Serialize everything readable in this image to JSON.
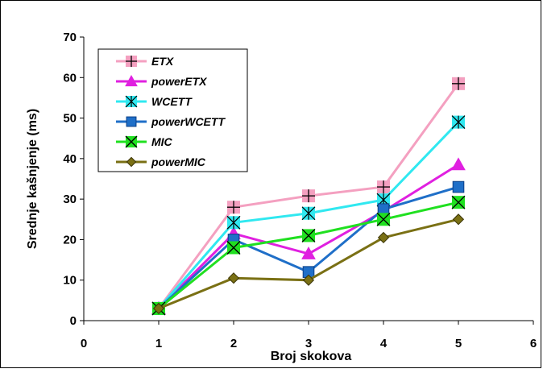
{
  "chart_data": {
    "type": "line",
    "title": "",
    "xlabel": "Broj skokova",
    "ylabel": "Srednje kašnjenje (ms)",
    "xlim": [
      0,
      6
    ],
    "ylim": [
      0,
      70
    ],
    "x_ticks": [
      "0",
      "1",
      "2",
      "3",
      "4",
      "5",
      "6"
    ],
    "y_ticks": [
      "0",
      "10",
      "20",
      "30",
      "40",
      "50",
      "60",
      "70"
    ],
    "grid": false,
    "legend_position": "top-left",
    "x": [
      1,
      2,
      3,
      4,
      5
    ],
    "series": [
      {
        "name": "ETX",
        "values": [
          3,
          28,
          30.8,
          33,
          58.5
        ],
        "color": "#f4a0c0",
        "marker": "plus"
      },
      {
        "name": "powerETX",
        "values": [
          3,
          21.5,
          16.5,
          27,
          38.5
        ],
        "color": "#e020e0",
        "marker": "triangle"
      },
      {
        "name": "WCETT",
        "values": [
          3,
          24.2,
          26.5,
          29.8,
          49
        ],
        "color": "#30e8f0",
        "marker": "asterisk"
      },
      {
        "name": "powerWCETT",
        "values": [
          3,
          20,
          12,
          27.5,
          33
        ],
        "color": "#1f6fc8",
        "marker": "square"
      },
      {
        "name": "MIC",
        "values": [
          3,
          18,
          21,
          25,
          29.2
        ],
        "color": "#20e020",
        "marker": "x"
      },
      {
        "name": "powerMIC",
        "values": [
          3,
          10.5,
          10,
          20.5,
          25
        ],
        "color": "#7a7014",
        "marker": "diamond"
      }
    ]
  }
}
